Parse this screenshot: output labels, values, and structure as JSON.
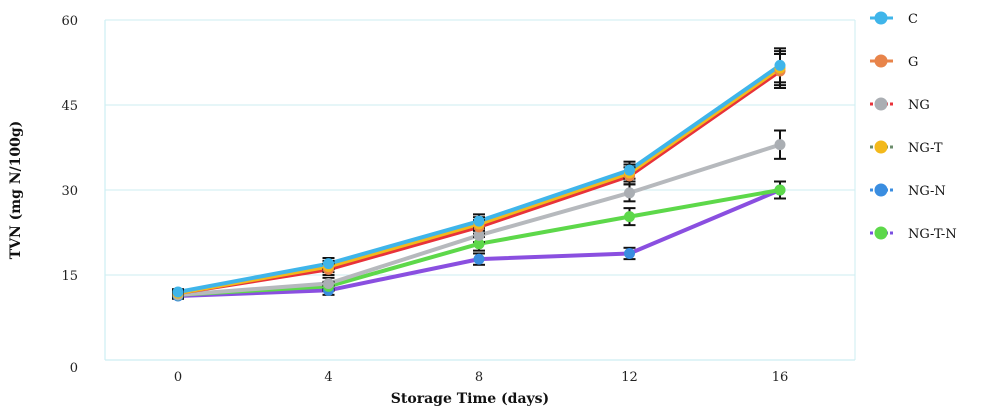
{
  "chart_data": {
    "type": "line",
    "title": "",
    "xlabel": "Storage Time (days)",
    "ylabel": "TVN (mg N/100g)",
    "x": [
      0,
      4,
      8,
      12,
      16
    ],
    "ylim": [
      0,
      60
    ],
    "yticks": [
      0,
      15,
      30,
      45,
      60
    ],
    "grid": true,
    "legend_position": "right",
    "series": [
      {
        "name": "C",
        "color": "#3fb5ea",
        "values": [
          12.0,
          17.0,
          24.5,
          33.5,
          52.0
        ],
        "errors": [
          0.5,
          1.0,
          1.2,
          1.5,
          3.0
        ]
      },
      {
        "name": "G",
        "color": "#e8844a",
        "values": [
          11.8,
          16.0,
          23.5,
          32.5,
          51.0
        ],
        "errors": [
          0.5,
          1.0,
          1.2,
          1.5,
          3.0
        ]
      },
      {
        "name": "NG",
        "color": "#aaaeb3",
        "values": [
          11.5,
          13.5,
          22.0,
          29.5,
          38.0
        ],
        "errors": [
          0.5,
          1.0,
          1.2,
          1.5,
          2.5
        ]
      },
      {
        "name": "NG-T",
        "color": "#f3b91c",
        "values": [
          11.8,
          16.5,
          24.0,
          33.0,
          51.5
        ],
        "errors": [
          0.5,
          1.0,
          1.2,
          1.5,
          3.0
        ]
      },
      {
        "name": "NG-N",
        "color": "#3a8de0",
        "values": [
          11.3,
          12.3,
          17.8,
          18.8,
          30.0
        ],
        "errors": [
          0.5,
          0.8,
          1.0,
          1.0,
          1.5
        ]
      },
      {
        "name": "NG-T-N",
        "color": "#5dd84a",
        "values": [
          11.5,
          13.0,
          20.5,
          25.3,
          30.0
        ],
        "errors": [
          0.5,
          0.8,
          1.2,
          1.5,
          1.5
        ]
      }
    ]
  }
}
